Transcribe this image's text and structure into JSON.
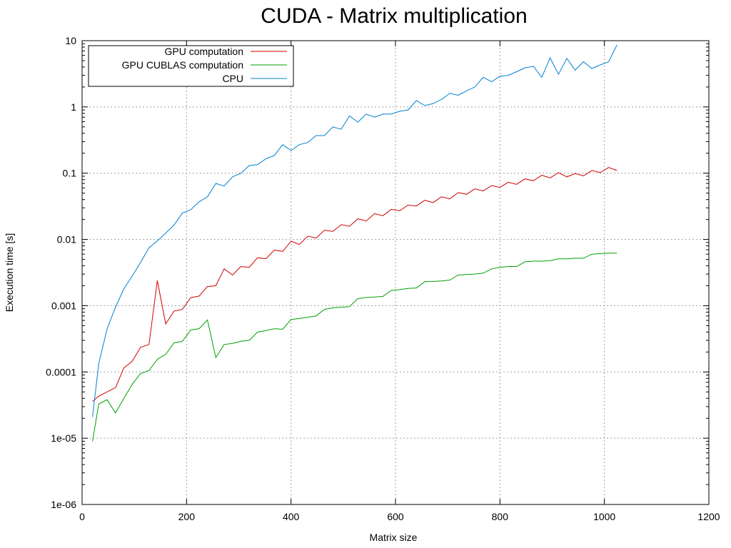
{
  "chart_data": {
    "type": "line",
    "title": "CUDA - Matrix multiplication",
    "xlabel": "Matrix size",
    "ylabel": "Execution time [s]",
    "xlim": [
      0,
      1200
    ],
    "ylim": [
      1e-06,
      10
    ],
    "yscale": "log",
    "grid": true,
    "legend_position": "top-left",
    "x_ticks": [
      0,
      200,
      400,
      600,
      800,
      1000,
      1200
    ],
    "x_tick_labels": [
      "0",
      "200",
      "400",
      "600",
      "800",
      "1000",
      "1200"
    ],
    "y_ticks": [
      1e-06,
      1e-05,
      0.0001,
      0.001,
      0.01,
      0.1,
      1,
      10
    ],
    "y_tick_labels": [
      "1e-06",
      "1e-05",
      "0.0001",
      "0.001",
      "0.01",
      "0.1",
      "1",
      "10"
    ],
    "series": [
      {
        "name": "GPU computation",
        "color": "#d00000",
        "points": [
          [
            20,
            3.6e-05
          ],
          [
            32,
            4.3e-05
          ],
          [
            48,
            5e-05
          ],
          [
            64,
            5.8e-05
          ],
          [
            80,
            0.000115
          ],
          [
            96,
            0.000145
          ],
          [
            112,
            0.000235
          ],
          [
            128,
            0.00026
          ],
          [
            144,
            0.0024
          ],
          [
            160,
            0.00053
          ],
          [
            176,
            0.00083
          ],
          [
            192,
            0.00088
          ],
          [
            208,
            0.00132
          ],
          [
            224,
            0.0014
          ],
          [
            240,
            0.00195
          ],
          [
            256,
            0.002
          ],
          [
            272,
            0.0036
          ],
          [
            288,
            0.0029
          ],
          [
            304,
            0.0039
          ],
          [
            320,
            0.0038
          ],
          [
            336,
            0.0053
          ],
          [
            352,
            0.0051
          ],
          [
            368,
            0.0069
          ],
          [
            384,
            0.0066
          ],
          [
            400,
            0.0094
          ],
          [
            416,
            0.0084
          ],
          [
            432,
            0.0112
          ],
          [
            448,
            0.0105
          ],
          [
            464,
            0.0138
          ],
          [
            480,
            0.0132
          ],
          [
            496,
            0.0167
          ],
          [
            512,
            0.0158
          ],
          [
            528,
            0.0205
          ],
          [
            544,
            0.019
          ],
          [
            560,
            0.0245
          ],
          [
            576,
            0.0228
          ],
          [
            592,
            0.0285
          ],
          [
            608,
            0.027
          ],
          [
            624,
            0.033
          ],
          [
            640,
            0.032
          ],
          [
            656,
            0.039
          ],
          [
            672,
            0.036
          ],
          [
            688,
            0.044
          ],
          [
            704,
            0.041
          ],
          [
            720,
            0.051
          ],
          [
            736,
            0.048
          ],
          [
            752,
            0.058
          ],
          [
            768,
            0.054
          ],
          [
            784,
            0.065
          ],
          [
            800,
            0.061
          ],
          [
            816,
            0.073
          ],
          [
            832,
            0.068
          ],
          [
            848,
            0.082
          ],
          [
            864,
            0.077
          ],
          [
            880,
            0.093
          ],
          [
            896,
            0.085
          ],
          [
            912,
            0.102
          ],
          [
            928,
            0.088
          ],
          [
            944,
            0.099
          ],
          [
            960,
            0.091
          ],
          [
            976,
            0.11
          ],
          [
            992,
            0.102
          ],
          [
            1008,
            0.122
          ],
          [
            1024,
            0.11
          ]
        ]
      },
      {
        "name": "GPU CUBLAS computation",
        "color": "#00a000",
        "points": [
          [
            20,
            9e-06
          ],
          [
            32,
            3.3e-05
          ],
          [
            48,
            3.8e-05
          ],
          [
            64,
            2.4e-05
          ],
          [
            80,
            4e-05
          ],
          [
            96,
            6.5e-05
          ],
          [
            112,
            9.5e-05
          ],
          [
            128,
            0.000105
          ],
          [
            144,
            0.000155
          ],
          [
            160,
            0.000185
          ],
          [
            176,
            0.000275
          ],
          [
            192,
            0.00029
          ],
          [
            208,
            0.00043
          ],
          [
            224,
            0.00045
          ],
          [
            240,
            0.00061
          ],
          [
            256,
            0.000165
          ],
          [
            272,
            0.00026
          ],
          [
            288,
            0.00027
          ],
          [
            304,
            0.00029
          ],
          [
            320,
            0.0003
          ],
          [
            336,
            0.0004
          ],
          [
            352,
            0.00042
          ],
          [
            368,
            0.00045
          ],
          [
            384,
            0.00044
          ],
          [
            400,
            0.00062
          ],
          [
            416,
            0.00064
          ],
          [
            432,
            0.00067
          ],
          [
            448,
            0.0007
          ],
          [
            464,
            0.00088
          ],
          [
            480,
            0.00093
          ],
          [
            496,
            0.00095
          ],
          [
            512,
            0.00097
          ],
          [
            528,
            0.00128
          ],
          [
            544,
            0.00133
          ],
          [
            560,
            0.00135
          ],
          [
            576,
            0.00138
          ],
          [
            592,
            0.0017
          ],
          [
            608,
            0.00175
          ],
          [
            624,
            0.00182
          ],
          [
            640,
            0.00185
          ],
          [
            656,
            0.0023
          ],
          [
            672,
            0.00232
          ],
          [
            688,
            0.00236
          ],
          [
            704,
            0.00244
          ],
          [
            720,
            0.0029
          ],
          [
            736,
            0.00295
          ],
          [
            752,
            0.003
          ],
          [
            768,
            0.0031
          ],
          [
            784,
            0.0036
          ],
          [
            800,
            0.0038
          ],
          [
            816,
            0.0039
          ],
          [
            832,
            0.0039
          ],
          [
            848,
            0.0046
          ],
          [
            864,
            0.0047
          ],
          [
            880,
            0.0047
          ],
          [
            896,
            0.0048
          ],
          [
            912,
            0.0051
          ],
          [
            928,
            0.0051
          ],
          [
            944,
            0.0052
          ],
          [
            960,
            0.0052
          ],
          [
            976,
            0.006
          ],
          [
            992,
            0.0061
          ],
          [
            1008,
            0.0062
          ],
          [
            1024,
            0.0062
          ]
        ]
      },
      {
        "name": "CPU",
        "color": "#0080d0",
        "points": [
          [
            20,
            2.1e-05
          ],
          [
            32,
            0.000135
          ],
          [
            48,
            0.00045
          ],
          [
            64,
            0.00095
          ],
          [
            80,
            0.0018
          ],
          [
            96,
            0.0028
          ],
          [
            112,
            0.0045
          ],
          [
            128,
            0.0075
          ],
          [
            144,
            0.0095
          ],
          [
            160,
            0.0125
          ],
          [
            176,
            0.0165
          ],
          [
            192,
            0.025
          ],
          [
            208,
            0.028
          ],
          [
            224,
            0.037
          ],
          [
            240,
            0.044
          ],
          [
            256,
            0.07
          ],
          [
            272,
            0.064
          ],
          [
            288,
            0.088
          ],
          [
            304,
            0.1
          ],
          [
            320,
            0.13
          ],
          [
            336,
            0.135
          ],
          [
            352,
            0.165
          ],
          [
            368,
            0.185
          ],
          [
            384,
            0.27
          ],
          [
            400,
            0.22
          ],
          [
            416,
            0.27
          ],
          [
            432,
            0.29
          ],
          [
            448,
            0.37
          ],
          [
            464,
            0.37
          ],
          [
            480,
            0.5
          ],
          [
            496,
            0.46
          ],
          [
            512,
            0.73
          ],
          [
            528,
            0.59
          ],
          [
            544,
            0.78
          ],
          [
            560,
            0.7
          ],
          [
            576,
            0.78
          ],
          [
            592,
            0.78
          ],
          [
            608,
            0.86
          ],
          [
            624,
            0.9
          ],
          [
            640,
            1.25
          ],
          [
            656,
            1.05
          ],
          [
            672,
            1.12
          ],
          [
            688,
            1.3
          ],
          [
            704,
            1.6
          ],
          [
            720,
            1.5
          ],
          [
            736,
            1.75
          ],
          [
            752,
            2.0
          ],
          [
            768,
            2.8
          ],
          [
            784,
            2.4
          ],
          [
            800,
            2.9
          ],
          [
            816,
            3.0
          ],
          [
            832,
            3.4
          ],
          [
            848,
            3.9
          ],
          [
            864,
            4.1
          ],
          [
            880,
            2.8
          ],
          [
            896,
            5.5
          ],
          [
            912,
            3.1
          ],
          [
            928,
            5.4
          ],
          [
            944,
            3.6
          ],
          [
            960,
            4.8
          ],
          [
            976,
            3.8
          ],
          [
            992,
            4.3
          ],
          [
            1008,
            4.8
          ],
          [
            1024,
            8.6
          ]
        ]
      }
    ]
  }
}
